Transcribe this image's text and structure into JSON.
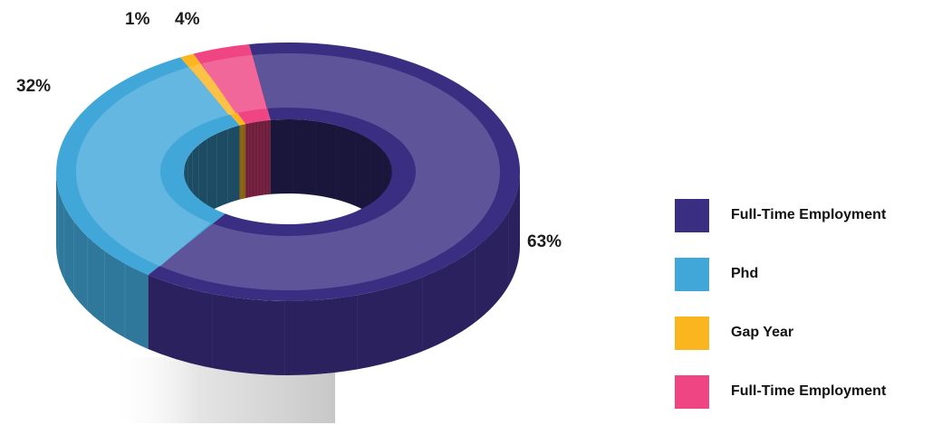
{
  "chart_data": {
    "type": "pie",
    "variant": "3d-donut",
    "title": "",
    "slices": [
      {
        "label": "Full-Time Employment",
        "value": 63,
        "display": "63%",
        "color": "#3a2e82"
      },
      {
        "label": "Phd",
        "value": 32,
        "display": "32%",
        "color": "#41a7d9"
      },
      {
        "label": "Gap Year",
        "value": 1,
        "display": "1%",
        "color": "#fbb51f"
      },
      {
        "label": "Full-Time Employment",
        "value": 4,
        "display": "4%",
        "color": "#ef4683"
      }
    ],
    "legend_position": "right"
  },
  "legend": [
    {
      "label": "Full-Time Employment",
      "color": "#3a2e82"
    },
    {
      "label": "Phd",
      "color": "#41a7d9"
    },
    {
      "label": "Gap Year",
      "color": "#fbb51f"
    },
    {
      "label": "Full-Time Employment",
      "color": "#ef4683"
    }
  ]
}
